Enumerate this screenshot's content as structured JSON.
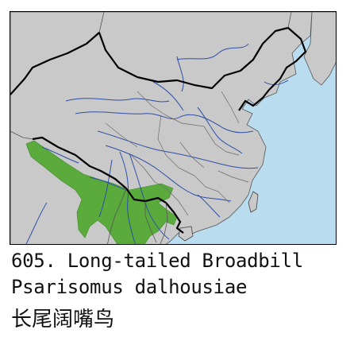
{
  "map": {
    "colors": {
      "sea": "#b9dcef",
      "land": "#c9c9c9",
      "range": "#5aaa3c",
      "border": "#000000",
      "province": "#555555",
      "river": "#2d4fa8"
    },
    "range_layer": "breeding-range"
  },
  "caption": {
    "number_and_name": "605. Long-tailed Broadbill",
    "scientific_name": "Psarisomus dalhousiae",
    "chinese_name": "长尾阔嘴鸟"
  }
}
